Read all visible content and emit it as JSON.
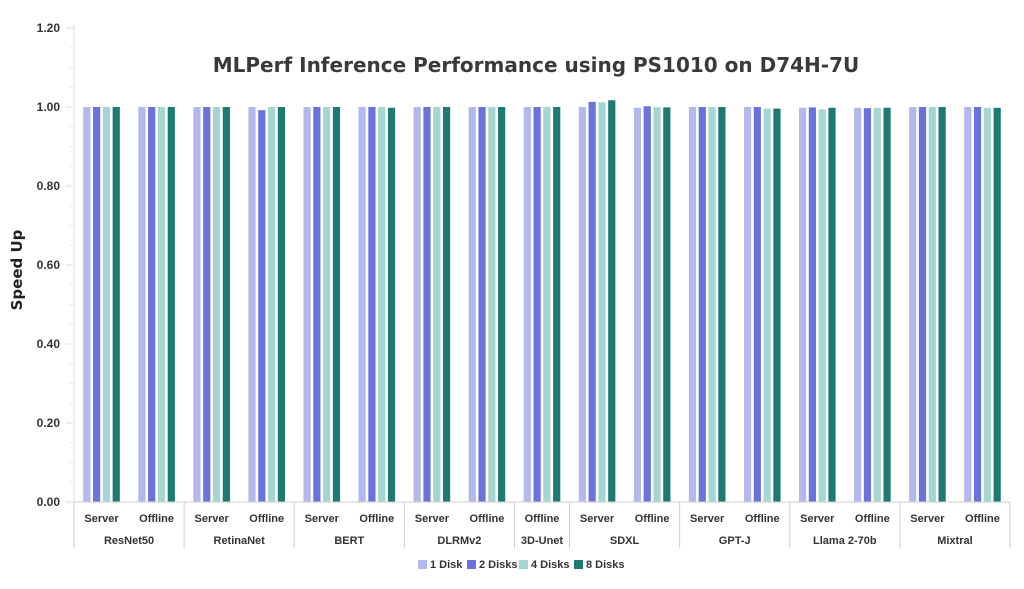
{
  "chart_data": {
    "type": "bar",
    "title": "MLPerf Inference Performance using PS1010 on D74H-7U",
    "xlabel": "",
    "ylabel": "Speed Up",
    "ylim": [
      0,
      1.2
    ],
    "yticks": [
      "0.00",
      "0.20",
      "0.40",
      "0.60",
      "0.80",
      "1.00",
      "1.20"
    ],
    "legend_position": "bottom",
    "groups": [
      {
        "name": "ResNet50",
        "categories": [
          "Server",
          "Offline"
        ]
      },
      {
        "name": "RetinaNet",
        "categories": [
          "Server",
          "Offline"
        ]
      },
      {
        "name": "BERT",
        "categories": [
          "Server",
          "Offline"
        ]
      },
      {
        "name": "DLRMv2",
        "categories": [
          "Server",
          "Offline"
        ]
      },
      {
        "name": "3D-Unet",
        "categories": [
          "Offline"
        ]
      },
      {
        "name": "SDXL",
        "categories": [
          "Server",
          "Offline"
        ]
      },
      {
        "name": "GPT-J",
        "categories": [
          "Server",
          "Offline"
        ]
      },
      {
        "name": "Llama 2-70b",
        "categories": [
          "Server",
          "Offline"
        ]
      },
      {
        "name": "Mixtral",
        "categories": [
          "Server",
          "Offline"
        ]
      }
    ],
    "series": [
      {
        "name": "1 Disk",
        "color": "#b3b9ec",
        "values": [
          1.0,
          1.0,
          1.0,
          1.0,
          1.0,
          1.0,
          1.0,
          1.0,
          1.0,
          1.0,
          0.998,
          1.0,
          1.0,
          0.998,
          0.998,
          1.0,
          1.0
        ]
      },
      {
        "name": "2 Disks",
        "color": "#6b72dc",
        "values": [
          1.0,
          1.0,
          1.0,
          0.992,
          1.0,
          1.0,
          1.0,
          1.0,
          1.0,
          1.013,
          1.002,
          1.0,
          1.0,
          0.999,
          0.997,
          1.0,
          1.0
        ]
      },
      {
        "name": "4 Disks",
        "color": "#a5d6d1",
        "values": [
          1.0,
          1.0,
          1.0,
          1.0,
          1.0,
          1.0,
          1.0,
          1.0,
          1.0,
          1.012,
          1.0,
          1.0,
          0.996,
          0.994,
          0.998,
          1.0,
          0.998
        ]
      },
      {
        "name": "8 Disks",
        "color": "#1c7a72",
        "values": [
          1.0,
          1.0,
          1.0,
          1.0,
          1.0,
          0.998,
          1.0,
          1.0,
          1.0,
          1.017,
          0.999,
          1.0,
          0.996,
          0.998,
          0.998,
          1.0,
          0.998
        ]
      }
    ]
  }
}
